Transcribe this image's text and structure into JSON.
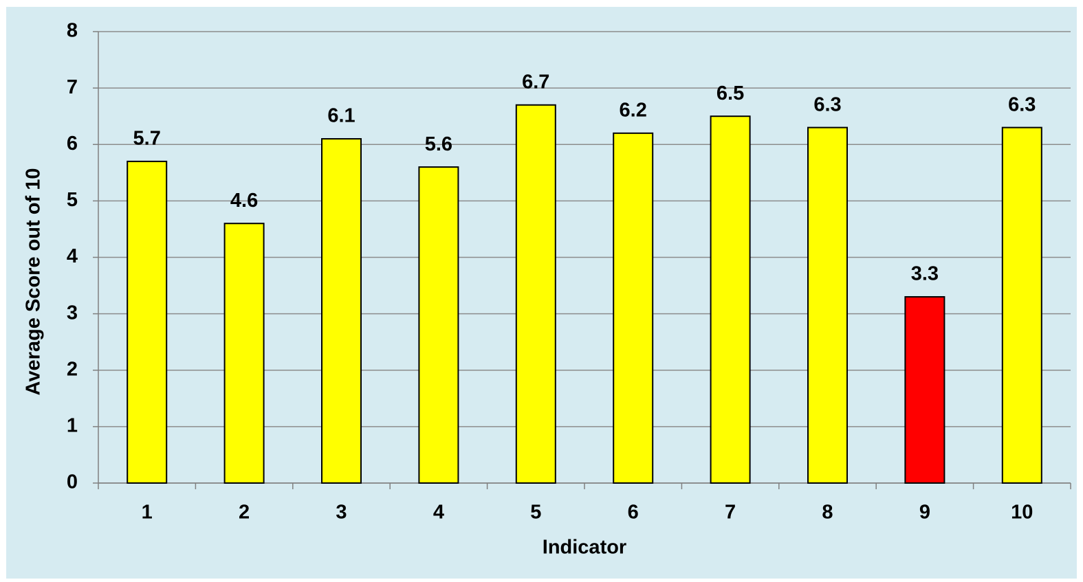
{
  "chart_data": {
    "type": "bar",
    "x_label": "Indicator",
    "y_label": "Average Score out of 10",
    "categories": [
      "1",
      "2",
      "3",
      "4",
      "5",
      "6",
      "7",
      "8",
      "9",
      "10"
    ],
    "values": [
      5.7,
      4.6,
      6.1,
      5.6,
      6.7,
      6.2,
      6.5,
      6.3,
      3.3,
      6.3
    ],
    "colors": [
      "#ffff00",
      "#ffff00",
      "#ffff00",
      "#ffff00",
      "#ffff00",
      "#ffff00",
      "#ffff00",
      "#ffff00",
      "#ff0000",
      "#ffff00"
    ],
    "ylim": [
      0,
      8
    ],
    "yticks": [
      0,
      1,
      2,
      3,
      4,
      5,
      6,
      7,
      8
    ],
    "grid": true
  }
}
